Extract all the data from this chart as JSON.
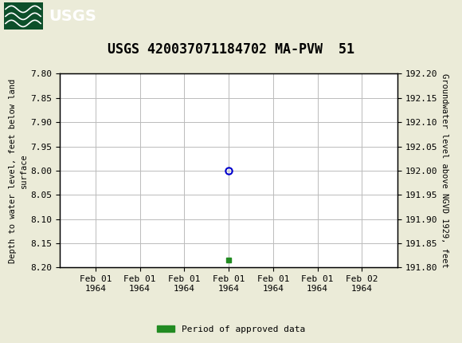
{
  "title": "USGS 420037071184702 MA-PVW  51",
  "header_bg_color": "#1a6b3c",
  "header_text_color": "#ffffff",
  "left_ylabel": "Depth to water level, feet below land\nsurface",
  "right_ylabel": "Groundwater level above NGVD 1929, feet",
  "ylim_left_top": 7.8,
  "ylim_left_bottom": 8.2,
  "ylim_right_top": 192.2,
  "ylim_right_bottom": 191.8,
  "yticks_left": [
    7.8,
    7.85,
    7.9,
    7.95,
    8.0,
    8.05,
    8.1,
    8.15,
    8.2
  ],
  "yticks_right": [
    192.2,
    192.15,
    192.1,
    192.05,
    192.0,
    191.95,
    191.9,
    191.85,
    191.8
  ],
  "data_point_x": 0,
  "data_point_y": 8.0,
  "data_point_color": "#0000cc",
  "data_point_marker_size": 6,
  "green_point_x": 0,
  "green_point_y": 8.185,
  "green_rect_color": "#228B22",
  "legend_label": "Period of approved data",
  "bg_color": "#ebebd8",
  "plot_bg_color": "#ffffff",
  "grid_color": "#bbbbbb",
  "font_family": "monospace",
  "title_fontsize": 12,
  "axis_label_fontsize": 7.5,
  "tick_fontsize": 8,
  "x_tick_labels": [
    "Feb 01\n1964",
    "Feb 01\n1964",
    "Feb 01\n1964",
    "Feb 01\n1964",
    "Feb 01\n1964",
    "Feb 01\n1964",
    "Feb 02\n1964"
  ],
  "x_tick_positions": [
    -3,
    -2,
    -1,
    0,
    1,
    2,
    3
  ],
  "xlim": [
    -3.8,
    3.8
  ]
}
